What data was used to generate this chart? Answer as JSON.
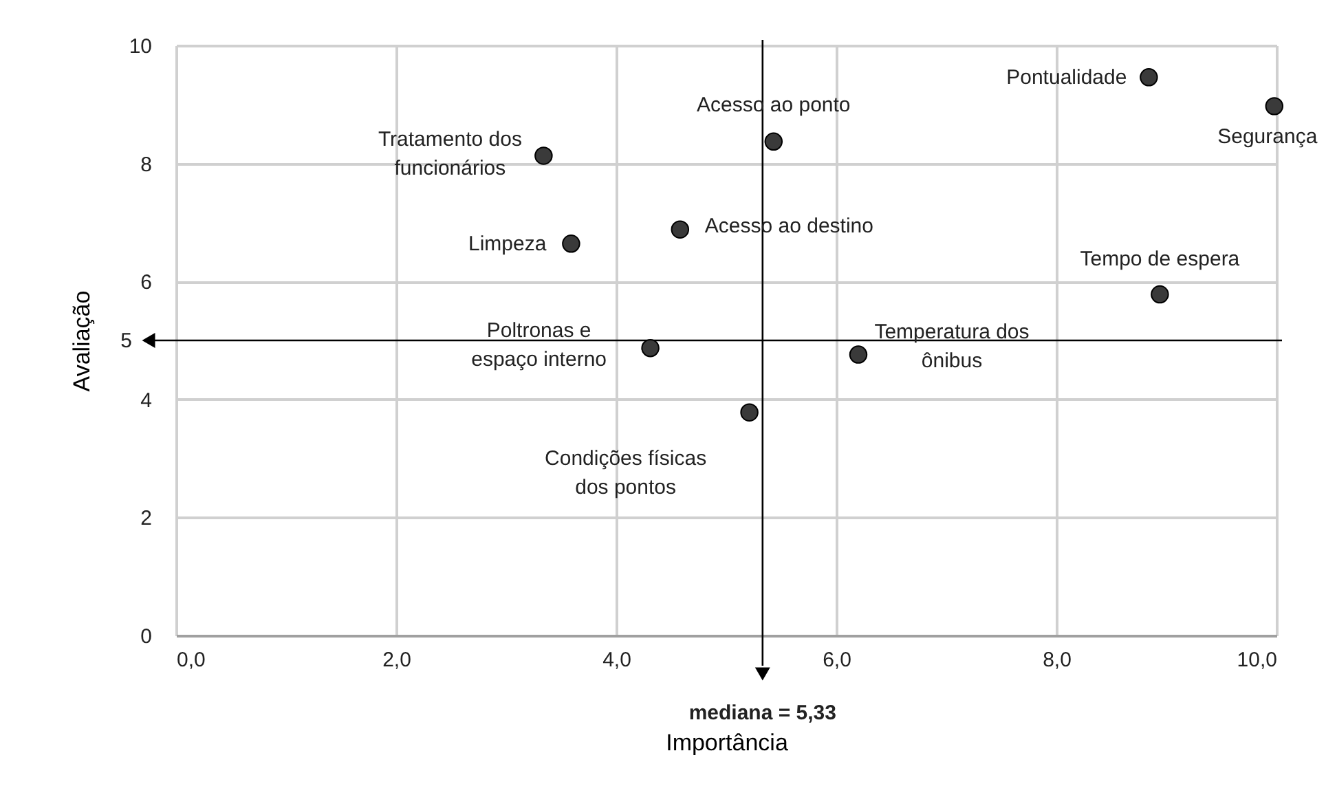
{
  "chart_data": {
    "type": "scatter",
    "xlabel": "Importância",
    "ylabel": "Avaliação",
    "series": [
      {
        "color": "#3a3a3a",
        "x": [
          3.34,
          3.59,
          4.58,
          5.43,
          4.31,
          5.21,
          6.2,
          8.84,
          9.98,
          8.94
        ],
        "values": [
          8.13,
          6.64,
          6.88,
          8.37,
          4.87,
          3.78,
          4.76,
          9.46,
          8.97,
          5.78
        ]
      }
    ],
    "annotations": [
      {
        "text": "Tratamento dos\nfuncionários",
        "x": 3.34,
        "y": 8.13
      },
      {
        "text": "Limpeza",
        "x": 3.59,
        "y": 6.64
      },
      {
        "text": "Acesso ao destino",
        "x": 4.58,
        "y": 6.88
      },
      {
        "text": "Acesso ao ponto",
        "x": 5.43,
        "y": 8.37
      },
      {
        "text": "Poltronas e\nespaço interno",
        "x": 4.31,
        "y": 4.87
      },
      {
        "text": "Condições físicas\ndos pontos",
        "x": 5.21,
        "y": 3.78
      },
      {
        "text": "Temperatura dos\nônibus",
        "x": 6.2,
        "y": 4.76
      },
      {
        "text": "Pontualidade",
        "x": 8.84,
        "y": 9.46
      },
      {
        "text": "Segurança",
        "x": 9.98,
        "y": 8.97
      },
      {
        "text": "Tempo de espera",
        "x": 8.94,
        "y": 5.78
      }
    ],
    "ref_lines": [
      {
        "axis": "y",
        "value": 5,
        "label": "5"
      },
      {
        "axis": "x",
        "value": 5.33,
        "label": "mediana = 5,33"
      }
    ],
    "xlim": [
      0,
      10
    ],
    "xticks": [
      {
        "value": 0,
        "label": "0,0"
      },
      {
        "value": 2,
        "label": "2,0"
      },
      {
        "value": 4,
        "label": "4,0"
      },
      {
        "value": 6,
        "label": "6,0"
      },
      {
        "value": 8,
        "label": "8,0"
      },
      {
        "value": 10,
        "label": "10,0"
      }
    ],
    "ylim": [
      0,
      10
    ],
    "yticks": [
      0,
      2,
      4,
      6,
      8,
      10
    ],
    "grid": true,
    "marker": "circle"
  }
}
